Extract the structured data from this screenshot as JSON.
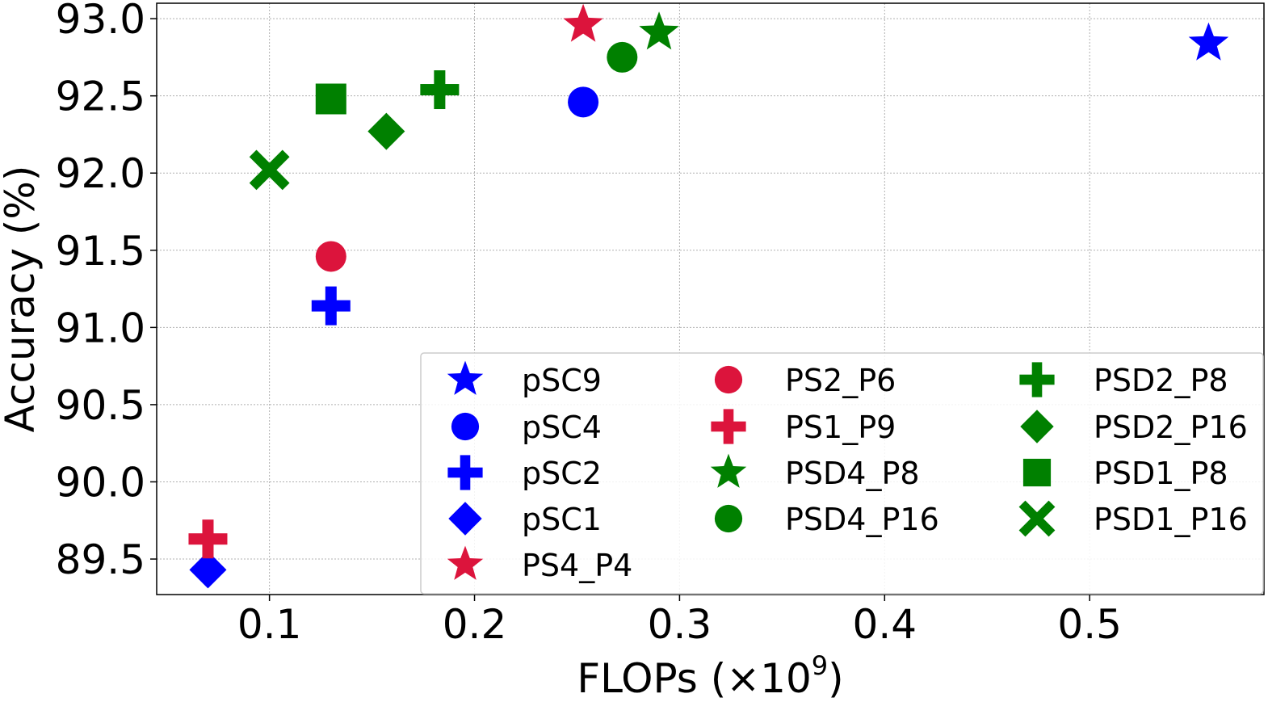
{
  "chart_data": {
    "type": "scatter",
    "title": "",
    "xlabel": "FLOPs (×10",
    "xlabel_exp": "9",
    "xlabel_close": ")",
    "ylabel": "Accuracy (%)",
    "xlim": [
      0.045,
      0.585
    ],
    "ylim": [
      89.27,
      93.1
    ],
    "xticks": [
      0.1,
      0.2,
      0.3,
      0.4,
      0.5
    ],
    "xtick_labels": [
      "0.1",
      "0.2",
      "0.3",
      "0.4",
      "0.5"
    ],
    "yticks": [
      89.5,
      90.0,
      90.5,
      91.0,
      91.5,
      92.0,
      92.5,
      93.0
    ],
    "ytick_labels": [
      "89.5",
      "90.0",
      "90.5",
      "91.0",
      "91.5",
      "92.0",
      "92.5",
      "93.0"
    ],
    "grid": true,
    "legend_position": "lower-right",
    "legend_columns": 3,
    "colors": {
      "blue": "#0000ff",
      "red": "#dc143c",
      "green": "#008000"
    },
    "series": [
      {
        "name": "pSC9",
        "marker": "star",
        "color": "#0000ff",
        "x": 0.558,
        "y": 92.84
      },
      {
        "name": "pSC4",
        "marker": "circle",
        "color": "#0000ff",
        "x": 0.253,
        "y": 92.46
      },
      {
        "name": "pSC2",
        "marker": "plus",
        "color": "#0000ff",
        "x": 0.13,
        "y": 91.14
      },
      {
        "name": "pSC1",
        "marker": "diamond",
        "color": "#0000ff",
        "x": 0.07,
        "y": 89.43
      },
      {
        "name": "PS4_P4",
        "marker": "star",
        "color": "#dc143c",
        "x": 0.253,
        "y": 92.96
      },
      {
        "name": "PS2_P6",
        "marker": "circle",
        "color": "#dc143c",
        "x": 0.13,
        "y": 91.46
      },
      {
        "name": "PS1_P9",
        "marker": "plus",
        "color": "#dc143c",
        "x": 0.07,
        "y": 89.63
      },
      {
        "name": "PSD4_P8",
        "marker": "star",
        "color": "#008000",
        "x": 0.29,
        "y": 92.91
      },
      {
        "name": "PSD4_P16",
        "marker": "circle",
        "color": "#008000",
        "x": 0.272,
        "y": 92.75
      },
      {
        "name": "PSD2_P8",
        "marker": "plus",
        "color": "#008000",
        "x": 0.183,
        "y": 92.54
      },
      {
        "name": "PSD2_P16",
        "marker": "diamond",
        "color": "#008000",
        "x": 0.157,
        "y": 92.27
      },
      {
        "name": "PSD1_P8",
        "marker": "square",
        "color": "#008000",
        "x": 0.13,
        "y": 92.48
      },
      {
        "name": "PSD1_P16",
        "marker": "x",
        "color": "#008000",
        "x": 0.1,
        "y": 92.02
      }
    ]
  }
}
